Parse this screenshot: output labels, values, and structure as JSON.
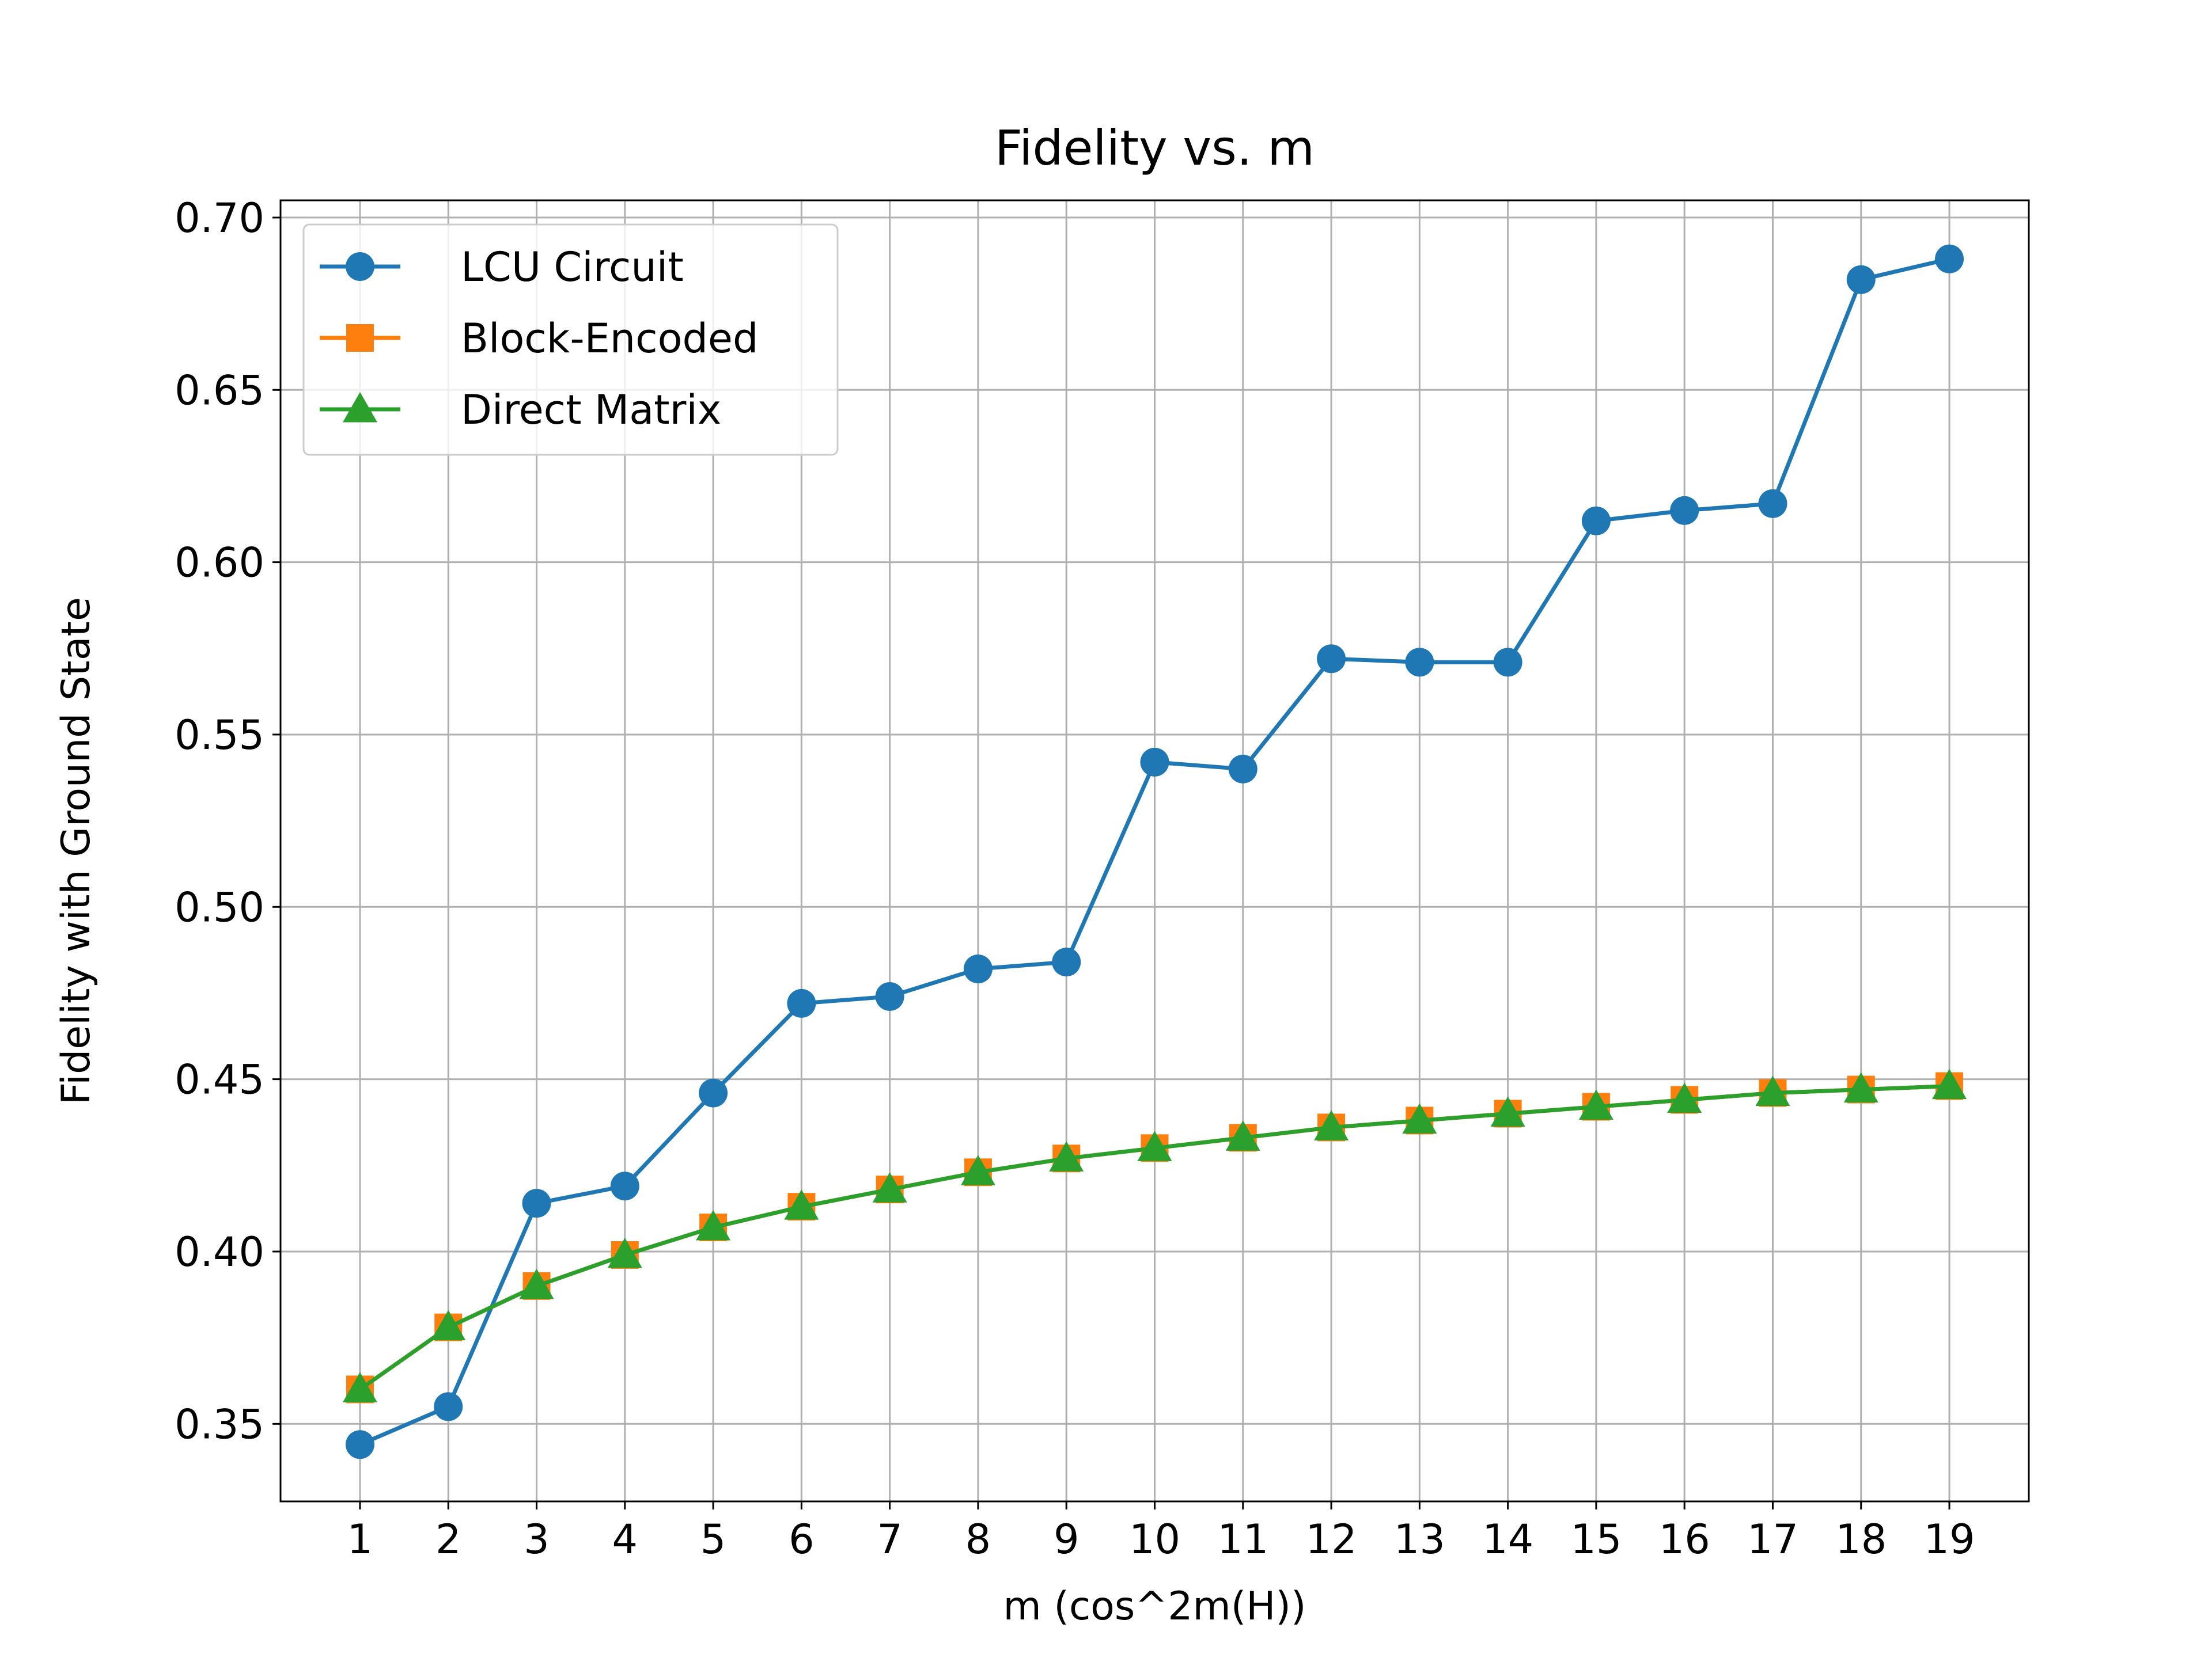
{
  "chart_data": {
    "type": "line",
    "title": "Fidelity vs. m",
    "xlabel": "m (cos^2m(H))",
    "ylabel": "Fidelity with Ground State",
    "x": [
      1,
      2,
      3,
      4,
      5,
      6,
      7,
      8,
      9,
      10,
      11,
      12,
      13,
      14,
      15,
      16,
      17,
      18,
      19
    ],
    "xlim": [
      0.1,
      19.9
    ],
    "ylim": [
      0.3275,
      0.705
    ],
    "xticks": [
      1,
      2,
      3,
      4,
      5,
      6,
      7,
      8,
      9,
      10,
      11,
      12,
      13,
      14,
      15,
      16,
      17,
      18,
      19
    ],
    "yticks": [
      0.35,
      0.4,
      0.45,
      0.5,
      0.55,
      0.6,
      0.65,
      0.7
    ],
    "ytick_labels": [
      "0.35",
      "0.40",
      "0.45",
      "0.50",
      "0.55",
      "0.60",
      "0.65",
      "0.70"
    ],
    "grid": true,
    "legend_position": "upper left",
    "series": [
      {
        "name": "LCU Circuit",
        "color": "#1f77b4",
        "marker": "circle",
        "values": [
          0.344,
          0.355,
          0.414,
          0.419,
          0.446,
          0.472,
          0.474,
          0.482,
          0.484,
          0.542,
          0.54,
          0.572,
          0.571,
          0.571,
          0.612,
          0.615,
          0.617,
          0.682,
          0.688
        ]
      },
      {
        "name": "Block-Encoded",
        "color": "#ff7f0e",
        "marker": "square",
        "values": [
          0.36,
          0.378,
          0.39,
          0.399,
          0.407,
          0.413,
          0.418,
          0.423,
          0.427,
          0.43,
          0.433,
          0.436,
          0.438,
          0.44,
          0.442,
          0.444,
          0.446,
          0.447,
          0.448
        ]
      },
      {
        "name": "Direct Matrix",
        "color": "#2ca02c",
        "marker": "triangle",
        "values": [
          0.36,
          0.378,
          0.39,
          0.399,
          0.407,
          0.413,
          0.418,
          0.423,
          0.427,
          0.43,
          0.433,
          0.436,
          0.438,
          0.44,
          0.442,
          0.444,
          0.446,
          0.447,
          0.448
        ]
      }
    ]
  }
}
